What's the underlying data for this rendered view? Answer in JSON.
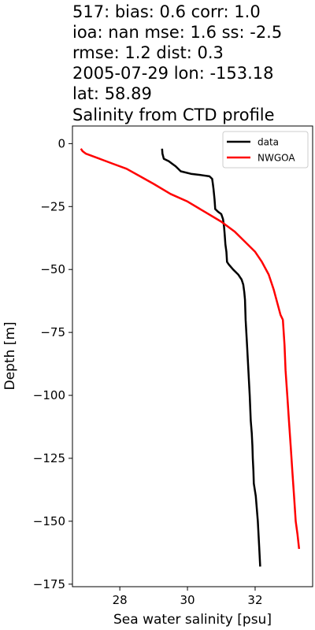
{
  "chart_data": {
    "type": "line",
    "title_lines": [
      "517: bias: 0.6  corr: 1.0",
      "ioa: nan  mse: 1.6  ss: -2.5",
      "rmse: 1.2  dist: 0.3",
      "2005-07-29 lon: -153.18",
      "lat: 58.89",
      "Salinity from CTD profile"
    ],
    "xlabel": "Sea water salinity [psu]",
    "ylabel": "Depth [m]",
    "xlim": [
      26.6,
      33.7
    ],
    "ylim": [
      -176,
      7
    ],
    "xticks": [
      28,
      30,
      32
    ],
    "yticks": [
      0,
      -25,
      -50,
      -75,
      -100,
      -125,
      -150,
      -175
    ],
    "grid": false,
    "legend": {
      "position": "top-right"
    },
    "series": [
      {
        "name": "data",
        "color": "#000000",
        "x": [
          29.25,
          29.26,
          29.3,
          29.45,
          29.55,
          29.65,
          29.8,
          30.1,
          30.4,
          30.65,
          30.73,
          30.75,
          30.77,
          30.8,
          30.82,
          30.9,
          31.0,
          31.05,
          31.08,
          31.1,
          31.12,
          31.15,
          31.17,
          31.22,
          31.35,
          31.5,
          31.6,
          31.65,
          31.68,
          31.7,
          31.72,
          31.76,
          31.8,
          31.84,
          31.87,
          31.9,
          31.92,
          31.93,
          31.95,
          31.96,
          32.02,
          32.05,
          32.08,
          32.12,
          32.15
        ],
        "y": [
          -2,
          -4,
          -6,
          -7,
          -8,
          -9,
          -11,
          -12,
          -12.5,
          -13,
          -14,
          -16,
          -18,
          -22,
          -26,
          -27,
          -28,
          -30,
          -33,
          -36,
          -40,
          -43,
          -47,
          -48,
          -50,
          -52,
          -54,
          -56,
          -59,
          -62,
          -70,
          -80,
          -90,
          -100,
          -110,
          -115,
          -120,
          -125,
          -130,
          -135,
          -140,
          -145,
          -150,
          -160,
          -168
        ]
      },
      {
        "name": "NWGOA",
        "color": "#ff0000",
        "x": [
          26.85,
          26.9,
          27.0,
          27.4,
          27.8,
          28.2,
          28.6,
          29.0,
          29.5,
          30.0,
          30.5,
          31.0,
          31.4,
          31.7,
          32.0,
          32.2,
          32.4,
          32.55,
          32.65,
          32.75,
          32.82,
          32.87,
          32.9,
          32.95,
          33.0,
          33.05,
          33.1,
          33.15,
          33.2,
          33.25,
          33.3
        ],
        "y": [
          -2,
          -3,
          -4,
          -6,
          -8,
          -10,
          -13,
          -16,
          -20,
          -23,
          -27,
          -31,
          -35,
          -39,
          -43,
          -47,
          -52,
          -58,
          -63,
          -68,
          -70,
          -80,
          -90,
          -100,
          -110,
          -120,
          -130,
          -140,
          -150,
          -155,
          -161
        ]
      }
    ]
  }
}
